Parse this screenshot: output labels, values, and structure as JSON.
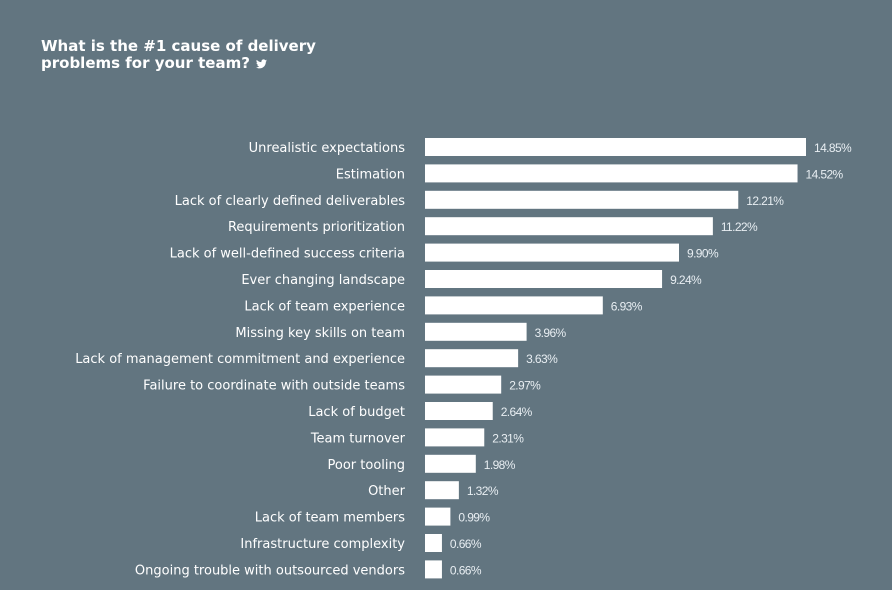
{
  "header": {
    "title_line1": "What is the #1 cause of delivery",
    "title_line2": "problems for your team?",
    "share_icon": "twitter-icon"
  },
  "colors": {
    "background": "#627580",
    "bar": "#ffffff",
    "text": "#ffffff",
    "value_text": "#e8eef2"
  },
  "chart_data": {
    "type": "bar",
    "orientation": "horizontal",
    "title": "What is the #1 cause of delivery problems for your team?",
    "xlabel": "",
    "ylabel": "",
    "value_suffix": "%",
    "grid": false,
    "legend": "none",
    "xlim": [
      0,
      15
    ],
    "categories": [
      "Unrealistic expectations",
      "Estimation",
      "Lack of clearly defined deliverables",
      "Requirements prioritization",
      "Lack of well-defined success criteria",
      "Ever changing landscape",
      "Lack of team experience",
      "Missing key skills on team",
      "Lack of management commitment and experience",
      "Failure to coordinate with outside teams",
      "Lack of budget",
      "Team turnover",
      "Poor tooling",
      "Other",
      "Lack of team members",
      "Infrastructure complexity",
      "Ongoing trouble with outsourced vendors"
    ],
    "values": [
      14.85,
      14.52,
      12.21,
      11.22,
      9.9,
      9.24,
      6.93,
      3.96,
      3.63,
      2.97,
      2.64,
      2.31,
      1.98,
      1.32,
      0.99,
      0.66,
      0.66
    ],
    "value_labels": [
      "14.85%",
      "14.52%",
      "12.21%",
      "11.22%",
      "9.90%",
      "9.24%",
      "6.93%",
      "3.96%",
      "3.63%",
      "2.97%",
      "2.64%",
      "2.31%",
      "1.98%",
      "1.32%",
      "0.99%",
      "0.66%",
      "0.66%"
    ]
  }
}
